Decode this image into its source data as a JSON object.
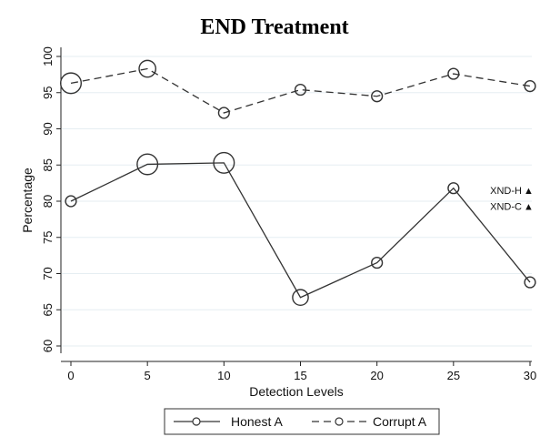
{
  "chart_data": {
    "type": "line",
    "title": "END Treatment",
    "xlabel": "Detection Levels",
    "ylabel": "Percentage",
    "x": [
      0,
      5,
      10,
      15,
      20,
      25,
      30
    ],
    "xticks": [
      "0",
      "5",
      "10",
      "15",
      "20",
      "25",
      "30"
    ],
    "xlim": [
      0,
      30
    ],
    "yticks": [
      "60",
      "65",
      "70",
      "75",
      "80",
      "85",
      "90",
      "95",
      "100"
    ],
    "ylim": [
      60,
      100
    ],
    "grid": "horizontal",
    "legend_position": "bottom",
    "series": [
      {
        "name": "Honest A",
        "style": "solid",
        "color": "#333333",
        "values": [
          80.0,
          85.1,
          85.3,
          66.7,
          71.5,
          81.8,
          68.8
        ],
        "marker_weight": [
          1,
          2,
          2,
          1.5,
          1,
          1,
          1
        ]
      },
      {
        "name": "Corrupt A",
        "style": "dashed",
        "color": "#333333",
        "values": [
          96.3,
          98.3,
          92.2,
          95.4,
          94.5,
          97.6,
          95.9
        ],
        "marker_weight": [
          2,
          1.6,
          1,
          1,
          1,
          1,
          1
        ]
      }
    ],
    "annotations": [
      {
        "text": "XND-H",
        "marker": "▲",
        "y": 81.5
      },
      {
        "text": "XND-C",
        "marker": "▲",
        "y": 79.3
      }
    ]
  }
}
